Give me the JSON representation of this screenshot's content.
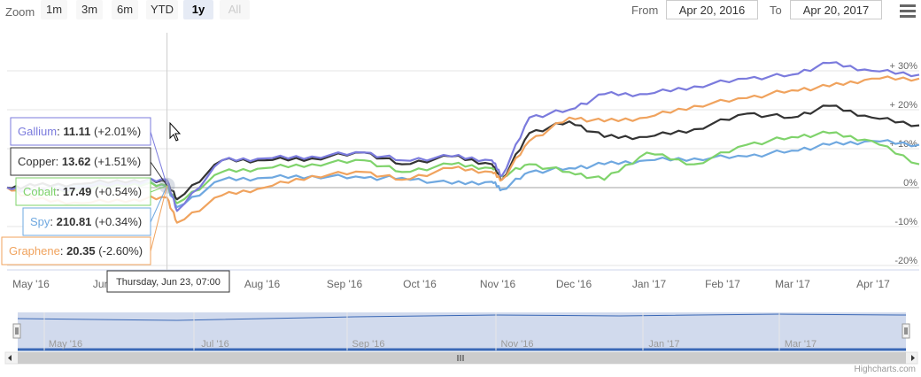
{
  "zoom": {
    "label": "Zoom",
    "buttons": [
      {
        "label": "1m",
        "state": "normal"
      },
      {
        "label": "3m",
        "state": "normal"
      },
      {
        "label": "6m",
        "state": "normal"
      },
      {
        "label": "YTD",
        "state": "normal"
      },
      {
        "label": "1y",
        "state": "active"
      },
      {
        "label": "All",
        "state": "disabled"
      }
    ]
  },
  "range": {
    "from_label": "From",
    "from_value": "Apr 20, 2016",
    "to_label": "To",
    "to_value": "Apr 20, 2017"
  },
  "menu": {
    "icon": "hamburger-menu-icon"
  },
  "tooltip": {
    "date_label": "Thursday, Jun 23, 07:00",
    "entries": [
      {
        "name": "Gallium",
        "value": "11.11",
        "change": "(+2.01%)",
        "color": "#7b7bdd"
      },
      {
        "name": "Copper",
        "value": "13.62",
        "change": "(+1.51%)",
        "color": "#333333"
      },
      {
        "name": "Cobalt",
        "value": "17.49",
        "change": "(+0.54%)",
        "color": "#7fd36b"
      },
      {
        "name": "Spy",
        "value": "210.81",
        "change": "(+0.34%)",
        "color": "#6fa8e0"
      },
      {
        "name": "Graphene",
        "value": "20.35",
        "change": "(-2.60%)",
        "color": "#f0a35e"
      }
    ]
  },
  "navigator_labels": [
    "May '16",
    "Jul '16",
    "Sep '16",
    "Nov '16",
    "Jan '17",
    "Mar '17"
  ],
  "credits": "Highcharts.com",
  "chart_data": {
    "type": "line",
    "x_labels": [
      "May '16",
      "Jun '16",
      "Aug '16",
      "Sep '16",
      "Oct '16",
      "Nov '16",
      "Dec '16",
      "Jan '17",
      "Feb '17",
      "Mar '17",
      "Apr '17"
    ],
    "y_ticks": [
      "+ 30%",
      "+ 20%",
      "+ 10%",
      "0%",
      "-10%",
      "-20%"
    ],
    "y_tick_values": [
      30,
      20,
      10,
      0,
      -10,
      -20
    ],
    "ylim": [
      -20,
      30
    ],
    "grid": true,
    "crosshair_at": "Thursday, Jun 23, 07:00",
    "series": [
      {
        "name": "Spy",
        "color": "#6fa8e0",
        "x": [
          "2016-04-20",
          "2016-05-01",
          "2016-05-20",
          "2016-06-10",
          "2016-06-23",
          "2016-06-27",
          "2016-07-15",
          "2016-08-01",
          "2016-08-20",
          "2016-09-10",
          "2016-09-25",
          "2016-10-15",
          "2016-10-31",
          "2016-11-04",
          "2016-11-15",
          "2016-12-01",
          "2016-12-15",
          "2017-01-01",
          "2017-01-20",
          "2017-02-10",
          "2017-02-28",
          "2017-03-15",
          "2017-04-01",
          "2017-04-20"
        ],
        "values": [
          0,
          0.5,
          0.5,
          1.5,
          0.3,
          -5,
          2,
          2.5,
          3,
          2.5,
          2.5,
          1,
          1.5,
          -0.5,
          4,
          5,
          6,
          7,
          7.5,
          8,
          9.5,
          11,
          12,
          11
        ]
      },
      {
        "name": "Cobalt",
        "color": "#7fd36b",
        "x": [
          "2016-04-20",
          "2016-05-01",
          "2016-05-20",
          "2016-06-10",
          "2016-06-23",
          "2016-06-27",
          "2016-07-15",
          "2016-08-01",
          "2016-08-20",
          "2016-09-10",
          "2016-09-25",
          "2016-10-15",
          "2016-10-31",
          "2016-11-04",
          "2016-11-15",
          "2016-12-01",
          "2016-12-15",
          "2017-01-01",
          "2017-01-20",
          "2017-02-10",
          "2017-02-28",
          "2017-03-15",
          "2017-04-01",
          "2017-04-20"
        ],
        "values": [
          0,
          -1,
          -0.5,
          1,
          0.5,
          -4,
          4,
          5,
          6,
          7,
          4,
          6,
          5,
          3,
          6,
          4,
          2,
          9,
          6,
          11,
          13,
          14,
          12,
          6
        ]
      },
      {
        "name": "Copper",
        "color": "#333333",
        "x": [
          "2016-04-20",
          "2016-05-01",
          "2016-05-20",
          "2016-06-10",
          "2016-06-23",
          "2016-06-27",
          "2016-07-15",
          "2016-08-01",
          "2016-08-20",
          "2016-09-10",
          "2016-09-25",
          "2016-10-15",
          "2016-10-31",
          "2016-11-04",
          "2016-11-15",
          "2016-12-01",
          "2016-12-15",
          "2017-01-01",
          "2017-01-20",
          "2017-02-10",
          "2017-02-28",
          "2017-03-15",
          "2017-04-01",
          "2017-04-20"
        ],
        "values": [
          0,
          0.5,
          1,
          2,
          1.5,
          -3,
          7,
          7,
          7.5,
          9,
          6,
          8,
          6,
          2,
          14,
          17,
          13,
          13,
          15,
          19,
          18,
          21,
          18,
          16
        ]
      },
      {
        "name": "Graphene",
        "color": "#f0a35e",
        "x": [
          "2016-04-20",
          "2016-05-01",
          "2016-05-20",
          "2016-06-10",
          "2016-06-23",
          "2016-06-27",
          "2016-07-15",
          "2016-08-01",
          "2016-08-20",
          "2016-09-10",
          "2016-09-25",
          "2016-10-15",
          "2016-10-31",
          "2016-11-04",
          "2016-11-15",
          "2016-12-01",
          "2016-12-15",
          "2017-01-01",
          "2017-01-20",
          "2017-02-10",
          "2017-02-28",
          "2017-03-15",
          "2017-04-01",
          "2017-04-20"
        ],
        "values": [
          0,
          -3,
          -4,
          -3,
          -2.6,
          -9,
          -2,
          0,
          3,
          4,
          2,
          5,
          4,
          2,
          12,
          18,
          17,
          18,
          21,
          23,
          25,
          26,
          28,
          28
        ]
      },
      {
        "name": "Gallium",
        "color": "#7b7bdd",
        "x": [
          "2016-04-20",
          "2016-05-01",
          "2016-05-20",
          "2016-06-10",
          "2016-06-23",
          "2016-06-27",
          "2016-07-15",
          "2016-08-01",
          "2016-08-20",
          "2016-09-10",
          "2016-09-25",
          "2016-10-15",
          "2016-10-31",
          "2016-11-04",
          "2016-11-15",
          "2016-12-01",
          "2016-12-15",
          "2017-01-01",
          "2017-01-20",
          "2017-02-10",
          "2017-02-28",
          "2017-03-15",
          "2017-04-01",
          "2017-04-20"
        ],
        "values": [
          0,
          -1,
          0,
          1.5,
          2,
          -6,
          7,
          7.5,
          8,
          9,
          7,
          8,
          7,
          3,
          18,
          20,
          24,
          24,
          26,
          28,
          29,
          32,
          30,
          29
        ]
      }
    ]
  }
}
